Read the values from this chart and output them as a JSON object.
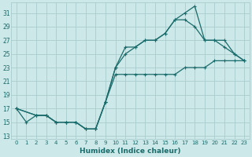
{
  "background_color": "#cce8e8",
  "grid_color": "#aacccc",
  "line_color": "#1a6b6b",
  "xlabel": "Humidex (Indice chaleur)",
  "xlim": [
    -0.5,
    23.5
  ],
  "ylim": [
    12.5,
    32.5
  ],
  "xticks": [
    0,
    1,
    2,
    3,
    4,
    5,
    6,
    7,
    8,
    9,
    10,
    11,
    12,
    13,
    14,
    15,
    16,
    17,
    18,
    19,
    20,
    21,
    22,
    23
  ],
  "yticks": [
    13,
    15,
    17,
    19,
    21,
    23,
    25,
    27,
    29,
    31
  ],
  "line1_x": [
    0,
    1,
    2,
    3,
    4,
    5,
    6,
    7,
    8,
    9,
    10,
    11,
    12,
    13,
    14,
    15,
    16,
    17,
    18,
    19,
    20,
    21,
    22,
    23
  ],
  "line1_y": [
    17,
    15,
    16,
    16,
    15,
    15,
    15,
    14,
    14,
    18,
    23,
    26,
    26,
    27,
    27,
    28,
    30,
    31,
    32,
    27,
    27,
    27,
    25,
    24
  ],
  "line2_x": [
    0,
    2,
    3,
    4,
    5,
    6,
    7,
    8,
    9,
    10,
    11,
    12,
    13,
    14,
    15,
    16,
    17,
    18,
    19,
    20,
    21,
    22,
    23
  ],
  "line2_y": [
    17,
    16,
    16,
    15,
    15,
    15,
    14,
    14,
    18,
    22,
    22,
    22,
    22,
    22,
    22,
    22,
    23,
    23,
    23,
    24,
    24,
    24,
    24
  ],
  "line3_x": [
    0,
    2,
    3,
    4,
    5,
    6,
    7,
    8,
    9,
    10,
    11,
    12,
    13,
    14,
    15,
    16,
    17,
    18,
    19,
    20,
    21,
    22,
    23
  ],
  "line3_y": [
    17,
    16,
    16,
    15,
    15,
    15,
    14,
    14,
    18,
    23,
    25,
    26,
    27,
    27,
    28,
    30,
    30,
    29,
    27,
    27,
    26,
    25,
    24
  ]
}
